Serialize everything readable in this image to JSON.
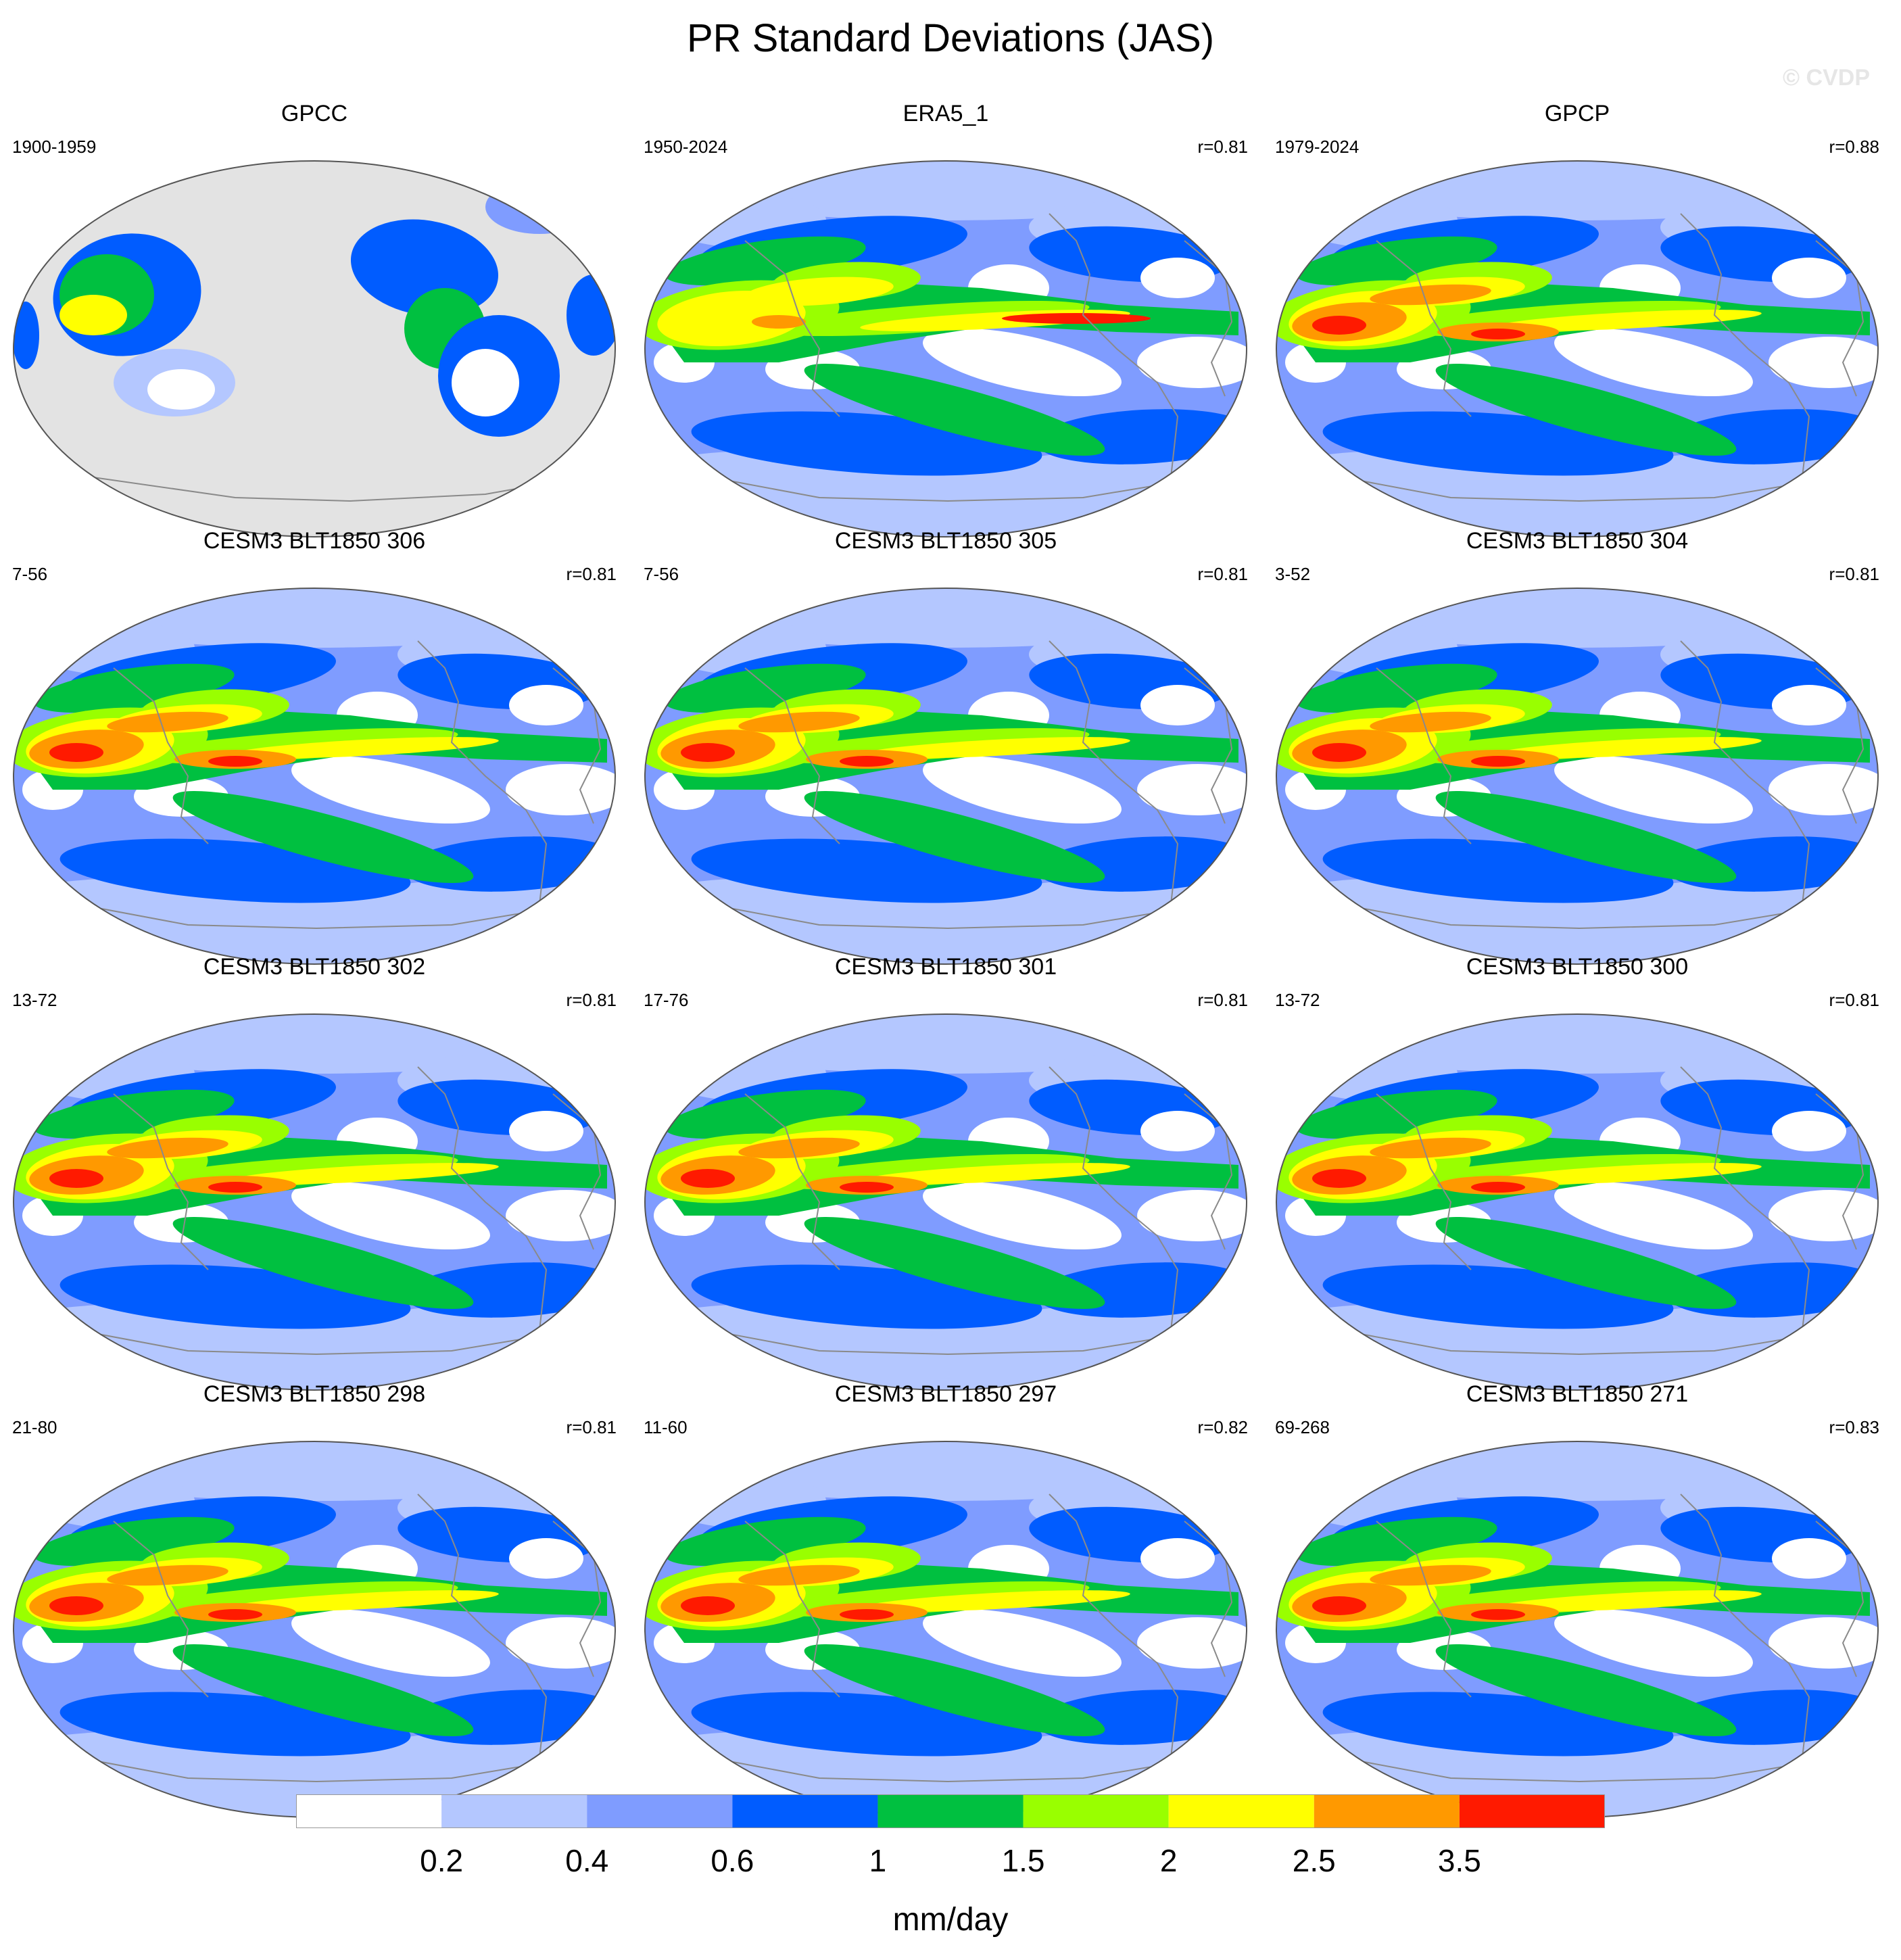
{
  "title": "PR Standard Deviations (JAS)",
  "watermark": "© CVDP",
  "colors": {
    "land_mask": "#e3e3e3",
    "coast": "#8a8a8a",
    "levels": [
      "#ffffff",
      "#b4c7ff",
      "#7f9cff",
      "#005cff",
      "#00c040",
      "#99ff00",
      "#ffff00",
      "#ff9900",
      "#ff1a00"
    ]
  },
  "colorbar": {
    "labels": [
      "0.2",
      "0.4",
      "0.6",
      "1",
      "1.5",
      "2",
      "2.5",
      "3.5"
    ],
    "units": "mm/day"
  },
  "panels": [
    {
      "title": "GPCC",
      "years": "1900-1959",
      "corr": "",
      "type": "obs-land"
    },
    {
      "title": "ERA5_1",
      "years": "1950-2024",
      "corr": "r=0.81",
      "type": "model"
    },
    {
      "title": "GPCP",
      "years": "1979-2024",
      "corr": "r=0.88",
      "type": "model"
    },
    {
      "title": "CESM3 BLT1850 306",
      "years": "7-56",
      "corr": "r=0.81",
      "type": "model"
    },
    {
      "title": "CESM3 BLT1850 305",
      "years": "7-56",
      "corr": "r=0.81",
      "type": "model"
    },
    {
      "title": "CESM3 BLT1850 304",
      "years": "3-52",
      "corr": "r=0.81",
      "type": "model"
    },
    {
      "title": "CESM3 BLT1850 302",
      "years": "13-72",
      "corr": "r=0.81",
      "type": "model"
    },
    {
      "title": "CESM3 BLT1850 301",
      "years": "17-76",
      "corr": "r=0.81",
      "type": "model"
    },
    {
      "title": "CESM3 BLT1850 300",
      "years": "13-72",
      "corr": "r=0.81",
      "type": "model"
    },
    {
      "title": "CESM3 BLT1850 298",
      "years": "21-80",
      "corr": "r=0.81",
      "type": "model"
    },
    {
      "title": "CESM3 BLT1850 297",
      "years": "11-60",
      "corr": "r=0.82",
      "type": "model"
    },
    {
      "title": "CESM3 BLT1850 271",
      "years": "69-268",
      "corr": "r=0.83",
      "type": "model"
    }
  ]
}
